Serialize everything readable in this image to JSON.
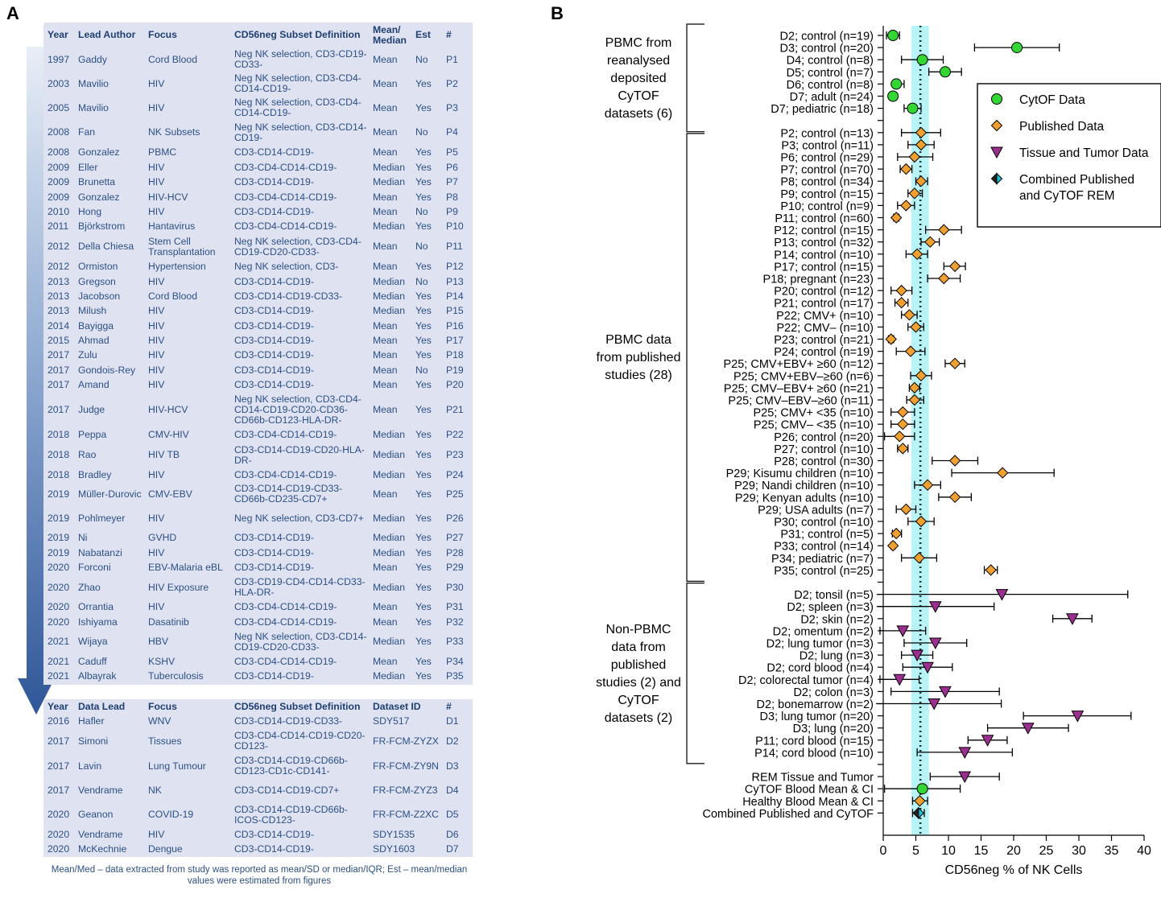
{
  "panel_a_letter": "A",
  "panel_b_letter": "B",
  "table_top": {
    "headers": [
      "Year",
      "Lead Author",
      "Focus",
      "CD56neg Subset Definition",
      "Mean/ Median",
      "Est",
      "#"
    ],
    "rows": [
      {
        "year": "1997",
        "author": "Gaddy",
        "focus": "Cord Blood",
        "def": "Neg NK selection, CD3-CD19-CD33-",
        "mean": "Mean",
        "est": "No",
        "id": "P1"
      },
      {
        "year": "2003",
        "author": "Mavilio",
        "focus": "HIV",
        "def": "Neg NK selection, CD3-CD4-CD14-CD19-",
        "mean": "Mean",
        "est": "Yes",
        "id": "P2"
      },
      {
        "year": "2005",
        "author": "Mavilio",
        "focus": "HIV",
        "def": "Neg NK selection, CD3-CD4-CD14-CD19-",
        "mean": "Mean",
        "est": "Yes",
        "id": "P3"
      },
      {
        "year": "2008",
        "author": "Fan",
        "focus": "NK Subsets",
        "def": "Neg NK selection, CD3-CD14-CD19-",
        "mean": "Mean",
        "est": "No",
        "id": "P4"
      },
      {
        "year": "2008",
        "author": "Gonzalez",
        "focus": "PBMC",
        "def": "CD3-CD14-CD19-",
        "mean": "Mean",
        "est": "Yes",
        "id": "P5"
      },
      {
        "year": "2009",
        "author": "Eller",
        "focus": "HIV",
        "def": "CD3-CD4-CD14-CD19-",
        "mean": "Median",
        "est": "Yes",
        "id": "P6"
      },
      {
        "year": "2009",
        "author": "Brunetta",
        "focus": "HIV",
        "def": "CD3-CD14-CD19-",
        "mean": "Median",
        "est": "Yes",
        "id": "P7"
      },
      {
        "year": "2009",
        "author": "Gonzalez",
        "focus": "HIV-HCV",
        "def": "CD3-CD4-CD14-CD19-",
        "mean": "Mean",
        "est": "Yes",
        "id": "P8"
      },
      {
        "year": "2010",
        "author": "Hong",
        "focus": "HIV",
        "def": "CD3-CD14-CD19-",
        "mean": "Mean",
        "est": "No",
        "id": "P9"
      },
      {
        "year": "2011",
        "author": "Björkstrom",
        "focus": "Hantavirus",
        "def": "CD3-CD4-CD14-CD19-",
        "mean": "Median",
        "est": "Yes",
        "id": "P10"
      },
      {
        "year": "2012",
        "author": "Della Chiesa",
        "focus": "Stem Cell Transplantation",
        "def": "Neg NK selection, CD3-CD4-CD19-CD20-CD33-",
        "mean": "Mean",
        "est": "No",
        "id": "P11"
      },
      {
        "year": "2012",
        "author": "Ormiston",
        "focus": "Hypertension",
        "def": "Neg NK selection, CD3-",
        "mean": "Mean",
        "est": "Yes",
        "id": "P12"
      },
      {
        "year": "2013",
        "author": "Gregson",
        "focus": "HIV",
        "def": "CD3-CD14-CD19-",
        "mean": "Median",
        "est": "No",
        "id": "P13"
      },
      {
        "year": "2013",
        "author": "Jacobson",
        "focus": "Cord Blood",
        "def": "CD3-CD14-CD19-CD33-",
        "mean": "Median",
        "est": "Yes",
        "id": "P14"
      },
      {
        "year": "2013",
        "author": "Milush",
        "focus": "HIV",
        "def": "CD3-CD14-CD19-",
        "mean": "Median",
        "est": "Yes",
        "id": "P15"
      },
      {
        "year": "2014",
        "author": "Bayigga",
        "focus": "HIV",
        "def": "CD3-CD14-CD19-",
        "mean": "Mean",
        "est": "Yes",
        "id": "P16"
      },
      {
        "year": "2015",
        "author": "Ahmad",
        "focus": "HIV",
        "def": "CD3-CD14-CD19-",
        "mean": "Mean",
        "est": "Yes",
        "id": "P17"
      },
      {
        "year": "2017",
        "author": "Zulu",
        "focus": "HIV",
        "def": "CD3-CD14-CD19-",
        "mean": "Mean",
        "est": "Yes",
        "id": "P18"
      },
      {
        "year": "2017",
        "author": "Gondois-Rey",
        "focus": "HIV",
        "def": "CD3-CD14-CD19-",
        "mean": "Mean",
        "est": "No",
        "id": "P19"
      },
      {
        "year": "2017",
        "author": "Amand",
        "focus": "HIV",
        "def": "CD3-CD14-CD19-",
        "mean": "Mean",
        "est": "Yes",
        "id": "P20"
      },
      {
        "year": "2017",
        "author": "Judge",
        "focus": "HIV-HCV",
        "def": "Neg NK selection, CD3-CD4-CD14-CD19-CD20-CD36-CD66b-CD123-HLA-DR-",
        "mean": "Mean",
        "est": "Yes",
        "id": "P21"
      },
      {
        "year": "2018",
        "author": "Peppa",
        "focus": "CMV-HIV",
        "def": "CD3-CD4-CD14-CD19-",
        "mean": "Median",
        "est": "Yes",
        "id": "P22"
      },
      {
        "year": "2018",
        "author": "Rao",
        "focus": "HIV TB",
        "def": "CD3-CD14-CD19-CD20-HLA-DR-",
        "mean": "Median",
        "est": "Yes",
        "id": "P23"
      },
      {
        "year": "2018",
        "author": "Bradley",
        "focus": "HIV",
        "def": "CD3-CD4-CD14-CD19-",
        "mean": "Median",
        "est": "Yes",
        "id": "P24"
      },
      {
        "year": "2019",
        "author": "Müller-Durovic",
        "focus": "CMV-EBV",
        "def": "CD3-CD14-CD19-CD33-CD66b-CD235-CD7+",
        "mean": "Mean",
        "est": "Yes",
        "id": "P25"
      },
      {
        "year": "2019",
        "author": "Pohlmeyer",
        "focus": "HIV",
        "def": "Neg NK selection, CD3-CD7+",
        "mean": "Median",
        "est": "Yes",
        "id": "P26"
      },
      {
        "year": "2019",
        "author": "Ni",
        "focus": "GVHD",
        "def": "CD3-CD14-CD19-",
        "mean": "Median",
        "est": "Yes",
        "id": "P27"
      },
      {
        "year": "2019",
        "author": "Nabatanzi",
        "focus": "HIV",
        "def": "CD3-CD14-CD19-",
        "mean": "Median",
        "est": "Yes",
        "id": "P28"
      },
      {
        "year": "2020",
        "author": "Forconi",
        "focus": "EBV-Malaria eBL",
        "def": "CD3-CD14-CD19-",
        "mean": "Mean",
        "est": "Yes",
        "id": "P29"
      },
      {
        "year": "2020",
        "author": "Zhao",
        "focus": "HIV Exposure",
        "def": "CD3-CD19-CD4-CD14-CD33-HLA-DR-",
        "mean": "Median",
        "est": "Yes",
        "id": "P30"
      },
      {
        "year": "2020",
        "author": "Orrantia",
        "focus": "HIV",
        "def": "CD3-CD4-CD14-CD19-",
        "mean": "Mean",
        "est": "Yes",
        "id": "P31"
      },
      {
        "year": "2020",
        "author": "Ishiyama",
        "focus": "Dasatinib",
        "def": "CD3-CD4-CD14-CD19-",
        "mean": "Mean",
        "est": "Yes",
        "id": "P32"
      },
      {
        "year": "2021",
        "author": "Wijaya",
        "focus": "HBV",
        "def": "Neg NK selection, CD3-CD14-CD19-CD20-CD33-",
        "mean": "Median",
        "est": "Yes",
        "id": "P33"
      },
      {
        "year": "2021",
        "author": "Caduff",
        "focus": "KSHV",
        "def": "CD3-CD4-CD14-CD19-",
        "mean": "Mean",
        "est": "Yes",
        "id": "P34"
      },
      {
        "year": "2021",
        "author": "Albayrak",
        "focus": "Tuberculosis",
        "def": "CD3-CD14-CD19-",
        "mean": "Median",
        "est": "Yes",
        "id": "P35"
      }
    ]
  },
  "table_bottom": {
    "headers": [
      "Year",
      "Data Lead",
      "Focus",
      "CD56neg Subset Definition",
      "Dataset ID",
      "#"
    ],
    "rows": [
      {
        "year": "2016",
        "author": "Hafler",
        "focus": "WNV",
        "def": "CD3-CD14-CD19-CD33-",
        "dsid": "SDY517",
        "id": "D1"
      },
      {
        "year": "2017",
        "author": "Simoni",
        "focus": "Tissues",
        "def": "CD3-CD4-CD14-CD19-CD20-CD123-",
        "dsid": "FR-FCM-ZYZX",
        "id": "D2"
      },
      {
        "year": "2017",
        "author": "Lavin",
        "focus": "Lung Tumour",
        "def": "CD3-CD14-CD19-CD66b-CD123-CD1c-CD141-",
        "dsid": "FR-FCM-ZY9N",
        "id": "D3"
      },
      {
        "year": "2017",
        "author": "Vendrame",
        "focus": "NK",
        "def": "CD3-CD14-CD19-CD7+",
        "dsid": "FR-FCM-ZYZ3",
        "id": "D4"
      },
      {
        "year": "2020",
        "author": "Geanon",
        "focus": "COVID-19",
        "def": "CD3-CD14-CD19-CD66b-ICOS-CD123-",
        "dsid": "FR-FCM-Z2XC",
        "id": "D5"
      },
      {
        "year": "2020",
        "author": "Vendrame",
        "focus": "HIV",
        "def": "CD3-CD14-CD19-",
        "dsid": "SDY1535",
        "id": "D6"
      },
      {
        "year": "2020",
        "author": "McKechnie",
        "focus": "Dengue",
        "def": "CD3-CD14-CD19-",
        "dsid": "SDY1603",
        "id": "D7"
      }
    ]
  },
  "footnote": "Mean/Med – data extracted from study was reported as mean/SD or median/IQR; Est – mean/median values were estimated from figures",
  "colors": {
    "cytof": "#33d633",
    "published": "#f0a030",
    "tissue": "#9b2f8f",
    "combined": "#222222",
    "combined_accent": "#22c0d8",
    "ci_band": "#b8f3f7",
    "table_bg": "#dfe3f1",
    "table_text": "#2c4f85"
  },
  "chart_data": {
    "type": "scatter",
    "xlabel": "CD56neg % of NK Cells",
    "xlim": [
      0,
      40
    ],
    "xticks": [
      0,
      5,
      10,
      15,
      20,
      25,
      30,
      35,
      40
    ],
    "reference_line": 5.7,
    "ci_band": [
      4.3,
      7.0
    ],
    "legend_position": "top-right",
    "legend": [
      {
        "label": "CytOF Data",
        "marker": "circle"
      },
      {
        "label": "Published Data",
        "marker": "diamond"
      },
      {
        "label": "Tissue and Tumor Data",
        "marker": "triangle"
      },
      {
        "label": "Combined Published and CyTOF REM",
        "marker": "combined"
      }
    ],
    "groups": [
      {
        "label": [
          "PBMC  from",
          "reanalysed",
          "deposited",
          "CyTOF",
          "datasets (6)"
        ],
        "from": 0,
        "to": 7
      },
      {
        "label": [
          "PBMC data",
          "from published",
          "studies (28)"
        ],
        "from": 9,
        "to": 44
      },
      {
        "label": [
          "Non-PBMC",
          "data from",
          "published",
          "studies (2) and",
          "CyTOF",
          "datasets (2)"
        ],
        "from": 46,
        "to": 59
      }
    ],
    "points": [
      {
        "label": "D2; control (n=19)",
        "value": 1.5,
        "lo": 0.5,
        "hi": 2.5,
        "marker": "circle"
      },
      {
        "label": "D3; control (n=20)",
        "value": 20.5,
        "lo": 14,
        "hi": 27,
        "marker": "circle"
      },
      {
        "label": "D4; control (n=8)",
        "value": 6.0,
        "lo": 2.8,
        "hi": 9.2,
        "marker": "circle"
      },
      {
        "label": "D5; control (n=7)",
        "value": 9.5,
        "lo": 7,
        "hi": 12,
        "marker": "circle"
      },
      {
        "label": "D6; control (n=8)",
        "value": 2.0,
        "lo": 1.5,
        "hi": 3.2,
        "marker": "circle"
      },
      {
        "label": "D7; adult (n=24)",
        "value": 1.5,
        "lo": 1.0,
        "hi": 2.0,
        "marker": "circle"
      },
      {
        "label": "D7; pediatric (n=18)",
        "value": 4.5,
        "lo": 3.2,
        "hi": 5.8,
        "marker": "circle"
      },
      {
        "label": "",
        "value": null,
        "marker": "none"
      },
      {
        "label": "P2; control (n=13)",
        "value": 5.8,
        "lo": 2.8,
        "hi": 8.8,
        "marker": "diamond"
      },
      {
        "label": "P3; control (n=11)",
        "value": 5.8,
        "lo": 3.8,
        "hi": 7.8,
        "marker": "diamond"
      },
      {
        "label": "P6; control (n=29)",
        "value": 4.8,
        "lo": 2.2,
        "hi": 7.6,
        "marker": "diamond"
      },
      {
        "label": "P7; control (n=70)",
        "value": 3.5,
        "lo": 2.6,
        "hi": 4.4,
        "marker": "diamond"
      },
      {
        "label": "P8; control (n=34)",
        "value": 5.8,
        "lo": 5.0,
        "hi": 6.8,
        "marker": "diamond"
      },
      {
        "label": "P9; control (n=15)",
        "value": 4.8,
        "lo": 3.8,
        "hi": 6.0,
        "marker": "diamond"
      },
      {
        "label": "P10; control (n=9)",
        "value": 3.5,
        "lo": 2.2,
        "hi": 4.8,
        "marker": "diamond"
      },
      {
        "label": "P11; control (n=60)",
        "value": 2.0,
        "lo": 1.6,
        "hi": 2.4,
        "marker": "diamond"
      },
      {
        "label": "P12; control (n=15)",
        "value": 9.3,
        "lo": 6.5,
        "hi": 12.0,
        "marker": "diamond"
      },
      {
        "label": "P13; control (n=32)",
        "value": 7.2,
        "lo": 5.8,
        "hi": 8.6,
        "marker": "diamond"
      },
      {
        "label": "P14; control (n=10)",
        "value": 5.2,
        "lo": 3.5,
        "hi": 6.8,
        "marker": "diamond"
      },
      {
        "label": "P17; control (n=15)",
        "value": 11.0,
        "lo": 9.3,
        "hi": 12.6,
        "marker": "diamond"
      },
      {
        "label": "P18; pregnant (n=23)",
        "value": 9.3,
        "lo": 6.8,
        "hi": 11.8,
        "marker": "diamond"
      },
      {
        "label": "P20; control (n=12)",
        "value": 2.8,
        "lo": 1.2,
        "hi": 4.4,
        "marker": "diamond"
      },
      {
        "label": "P21; control (n=17)",
        "value": 2.8,
        "lo": 1.8,
        "hi": 3.8,
        "marker": "diamond"
      },
      {
        "label": "P22; CMV+ (n=10)",
        "value": 4.0,
        "lo": 2.8,
        "hi": 5.2,
        "marker": "diamond"
      },
      {
        "label": "P22; CMV– (n=10)",
        "value": 5.0,
        "lo": 3.8,
        "hi": 6.2,
        "marker": "diamond"
      },
      {
        "label": "P23; control (n=21)",
        "value": 1.2,
        "lo": 0.8,
        "hi": 1.6,
        "marker": "diamond"
      },
      {
        "label": "P24; control (n=19)",
        "value": 4.2,
        "lo": 2.0,
        "hi": 6.4,
        "marker": "diamond"
      },
      {
        "label": "P25; CMV+EBV+ ≥60 (n=12)",
        "value": 11.0,
        "lo": 9.5,
        "hi": 12.5,
        "marker": "diamond"
      },
      {
        "label": "P25; CMV+EBV–≥60 (n=6)",
        "value": 5.8,
        "lo": 4.2,
        "hi": 7.4,
        "marker": "diamond"
      },
      {
        "label": "P25; CMV–EBV+ ≥60 (n=21)",
        "value": 4.8,
        "lo": 4.0,
        "hi": 5.6,
        "marker": "diamond"
      },
      {
        "label": "P25; CMV–EBV–≥60 (n=11)",
        "value": 4.8,
        "lo": 3.6,
        "hi": 6.2,
        "marker": "diamond"
      },
      {
        "label": "P25; CMV+ <35 (n=10)",
        "value": 3.0,
        "lo": 1.2,
        "hi": 4.8,
        "marker": "diamond"
      },
      {
        "label": "P25; CMV– <35 (n=10)",
        "value": 3.0,
        "lo": 1.2,
        "hi": 4.8,
        "marker": "diamond"
      },
      {
        "label": "P26; control (n=20)",
        "value": 2.5,
        "lo": 0.2,
        "hi": 4.8,
        "marker": "diamond"
      },
      {
        "label": "P27; control (n=10)",
        "value": 3.0,
        "lo": 2.2,
        "hi": 3.8,
        "marker": "diamond"
      },
      {
        "label": "P28; control (n=30)",
        "value": 11.0,
        "lo": 7.5,
        "hi": 14.5,
        "marker": "diamond"
      },
      {
        "label": "P29; Kisumu children (n=10)",
        "value": 18.3,
        "lo": 10.5,
        "hi": 26.2,
        "marker": "diamond"
      },
      {
        "label": "P29; Nandi children (n=10)",
        "value": 6.8,
        "lo": 4.8,
        "hi": 8.8,
        "marker": "diamond"
      },
      {
        "label": "P29; Kenyan adults (n=10)",
        "value": 11.0,
        "lo": 8.5,
        "hi": 13.5,
        "marker": "diamond"
      },
      {
        "label": "P29; USA adults (n=7)",
        "value": 3.5,
        "lo": 2.0,
        "hi": 5.0,
        "marker": "diamond"
      },
      {
        "label": "P30; control (n=10)",
        "value": 5.8,
        "lo": 3.8,
        "hi": 7.8,
        "marker": "diamond"
      },
      {
        "label": "P31; control (n=5)",
        "value": 2.0,
        "lo": 1.4,
        "hi": 2.8,
        "marker": "diamond"
      },
      {
        "label": "P33; control (n=14)",
        "value": 1.5,
        "lo": 1.2,
        "hi": 1.8,
        "marker": "diamond"
      },
      {
        "label": "P34; pediatric (n=7)",
        "value": 5.5,
        "lo": 2.8,
        "hi": 8.2,
        "marker": "diamond"
      },
      {
        "label": "P35; control (n=25)",
        "value": 16.5,
        "lo": 15.5,
        "hi": 17.5,
        "marker": "diamond"
      },
      {
        "label": "",
        "value": null,
        "marker": "none"
      },
      {
        "label": "D2; tonsil (n=5)",
        "value": 18.2,
        "lo": -1,
        "hi": 37.5,
        "marker": "triangle"
      },
      {
        "label": "D2; spleen (n=3)",
        "value": 8.0,
        "lo": -1,
        "hi": 17.0,
        "marker": "triangle"
      },
      {
        "label": "D2; skin (n=2)",
        "value": 29.0,
        "lo": 26.0,
        "hi": 32.0,
        "marker": "triangle"
      },
      {
        "label": "D2; omentum (n=2)",
        "value": 3.0,
        "lo": -0.5,
        "hi": 6.5,
        "marker": "triangle"
      },
      {
        "label": "D2; lung tumor (n=3)",
        "value": 8.0,
        "lo": 3.2,
        "hi": 12.8,
        "marker": "triangle"
      },
      {
        "label": "D2; lung (n=3)",
        "value": 5.2,
        "lo": 2.8,
        "hi": 7.6,
        "marker": "triangle"
      },
      {
        "label": "D2; cord blood (n=4)",
        "value": 6.8,
        "lo": 3.0,
        "hi": 10.6,
        "marker": "triangle"
      },
      {
        "label": "D2; colorectal tumor (n=4)",
        "value": 2.5,
        "lo": -0.5,
        "hi": 5.5,
        "marker": "triangle"
      },
      {
        "label": "D2; colon (n=3)",
        "value": 9.5,
        "lo": 1.2,
        "hi": 17.8,
        "marker": "triangle"
      },
      {
        "label": "D2; bonemarrow (n=2)",
        "value": 7.8,
        "lo": -2.5,
        "hi": 18.1,
        "marker": "triangle"
      },
      {
        "label": "D3; lung tumor (n=20)",
        "value": 29.8,
        "lo": 21.5,
        "hi": 38.0,
        "marker": "triangle"
      },
      {
        "label": "D3; lung (n=20)",
        "value": 22.2,
        "lo": 16.0,
        "hi": 28.4,
        "marker": "triangle"
      },
      {
        "label": "P11; cord blood (n=15)",
        "value": 16.0,
        "lo": 13.0,
        "hi": 19.0,
        "marker": "triangle"
      },
      {
        "label": "P14; cord blood (n=10)",
        "value": 12.5,
        "lo": 5.2,
        "hi": 19.8,
        "marker": "triangle"
      },
      {
        "label": "",
        "value": null,
        "marker": "none"
      },
      {
        "label": "REM Tissue and Tumor",
        "value": 12.5,
        "lo": 7.2,
        "hi": 17.8,
        "marker": "triangle"
      },
      {
        "label": "CyTOF Blood Mean & CI",
        "value": 6.0,
        "lo": 0.2,
        "hi": 11.8,
        "marker": "circle"
      },
      {
        "label": "Healthy Blood Mean & CI",
        "value": 5.6,
        "lo": 4.5,
        "hi": 6.8,
        "marker": "diamond"
      },
      {
        "label": "Combined Published and CyTOF",
        "value": 5.4,
        "lo": 4.5,
        "hi": 6.3,
        "marker": "combined"
      }
    ]
  }
}
